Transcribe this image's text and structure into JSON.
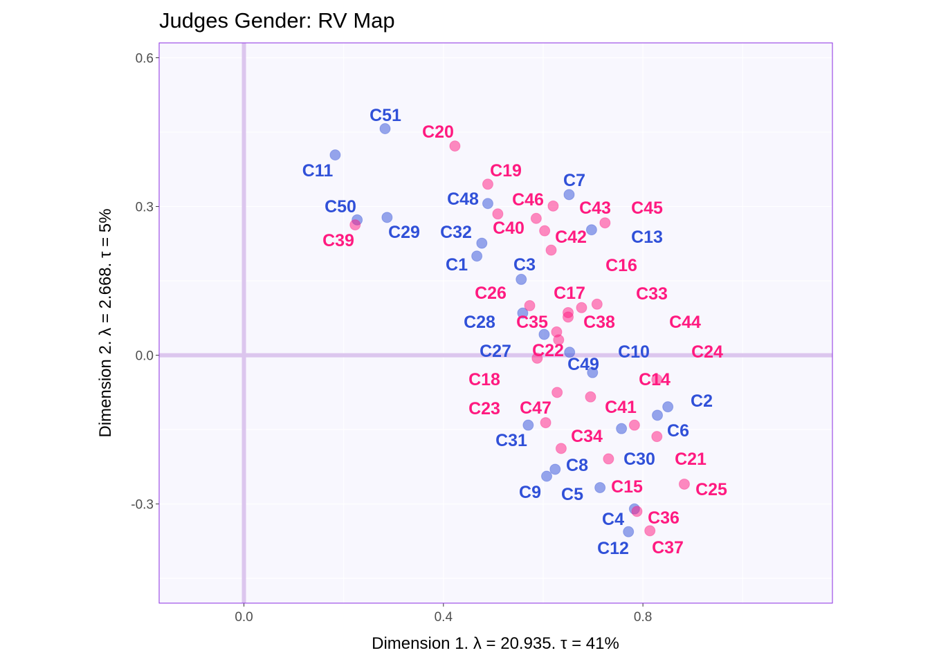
{
  "chart_data": {
    "type": "scatter",
    "title": "Judges Gender: RV Map",
    "xlabel": "Dimension 1.   λ = 20.935.  τ = 41%",
    "ylabel": "Dimension 2.   λ = 2.668.  τ = 5%",
    "xlim": [
      -0.17,
      1.18
    ],
    "ylim": [
      -0.5,
      0.63
    ],
    "xticks": [
      0.0,
      0.4,
      0.8
    ],
    "xtick_labels": [
      "0.0",
      "0.4",
      "0.8"
    ],
    "yticks": [
      -0.3,
      0.0,
      0.3,
      0.6
    ],
    "ytick_labels": [
      "-0.3",
      "0.0",
      "0.3",
      "0.6"
    ],
    "grid": true,
    "colors": {
      "background": "#F8F7FE",
      "border": "#8A2BE2",
      "origin_lines": "#DCC6EE",
      "blue": "#3050D8",
      "pink": "#FF1A80"
    },
    "series": [
      {
        "color": "#3050D8",
        "points": [
          {
            "label": "C51",
            "x": 0.283,
            "y": 0.457
          },
          {
            "label": "C11",
            "x": 0.183,
            "y": 0.404
          },
          {
            "label": "C50",
            "x": 0.227,
            "y": 0.273
          },
          {
            "label": "C29",
            "x": 0.287,
            "y": 0.278
          },
          {
            "label": "C32",
            "x": 0.477,
            "y": 0.226
          },
          {
            "label": "C1",
            "x": 0.467,
            "y": 0.2
          },
          {
            "label": "C48",
            "x": 0.489,
            "y": 0.306
          },
          {
            "label": "C7",
            "x": 0.652,
            "y": 0.324
          },
          {
            "label": "C13",
            "x": 0.697,
            "y": 0.253
          },
          {
            "label": "C3",
            "x": 0.556,
            "y": 0.153
          },
          {
            "label": "C28",
            "x": 0.559,
            "y": 0.085
          },
          {
            "label": "C27",
            "x": 0.602,
            "y": 0.042
          },
          {
            "label": "C49",
            "x": 0.653,
            "y": 0.006
          },
          {
            "label": "C10",
            "x": 0.699,
            "y": -0.035
          },
          {
            "label": "C2",
            "x": 0.85,
            "y": -0.104
          },
          {
            "label": "C6",
            "x": 0.829,
            "y": -0.121
          },
          {
            "label": "C30",
            "x": 0.757,
            "y": -0.148
          },
          {
            "label": "C31",
            "x": 0.57,
            "y": -0.141
          },
          {
            "label": "C8",
            "x": 0.624,
            "y": -0.23
          },
          {
            "label": "C9",
            "x": 0.607,
            "y": -0.244
          },
          {
            "label": "C5",
            "x": 0.714,
            "y": -0.267
          },
          {
            "label": "C4",
            "x": 0.783,
            "y": -0.31
          },
          {
            "label": "C12",
            "x": 0.771,
            "y": -0.356
          }
        ]
      },
      {
        "color": "#FF1A80",
        "points": [
          {
            "label": "C20",
            "x": 0.423,
            "y": 0.422
          },
          {
            "label": "C39",
            "x": 0.223,
            "y": 0.263
          },
          {
            "label": "C19",
            "x": 0.489,
            "y": 0.345
          },
          {
            "label": "C40",
            "x": 0.509,
            "y": 0.285
          },
          {
            "label": "C46",
            "x": 0.586,
            "y": 0.276
          },
          {
            "label": "C43",
            "x": 0.62,
            "y": 0.301
          },
          {
            "label": "C45",
            "x": 0.724,
            "y": 0.267
          },
          {
            "label": "C42",
            "x": 0.603,
            "y": 0.251
          },
          {
            "label": "C16",
            "x": 0.616,
            "y": 0.212
          },
          {
            "label": "C26",
            "x": 0.573,
            "y": 0.1
          },
          {
            "label": "C17",
            "x": 0.65,
            "y": 0.086
          },
          {
            "label": "C38",
            "x": 0.65,
            "y": 0.077
          },
          {
            "label": "C33",
            "x": 0.677,
            "y": 0.096
          },
          {
            "label": "C44",
            "x": 0.708,
            "y": 0.103
          },
          {
            "label": "C35",
            "x": 0.627,
            "y": 0.047
          },
          {
            "label": "C22",
            "x": 0.631,
            "y": 0.031
          },
          {
            "label": "C14",
            "x": 0.588,
            "y": -0.006
          },
          {
            "label": "C24",
            "x": 0.828,
            "y": -0.049
          },
          {
            "label": "C18",
            "x": 0.628,
            "y": -0.075
          },
          {
            "label": "C23",
            "x": 0.605,
            "y": -0.136
          },
          {
            "label": "C47",
            "x": 0.695,
            "y": -0.084
          },
          {
            "label": "C41",
            "x": 0.783,
            "y": -0.141
          },
          {
            "label": "C34",
            "x": 0.636,
            "y": -0.188
          },
          {
            "label": "C21",
            "x": 0.828,
            "y": -0.164
          },
          {
            "label": "C15",
            "x": 0.731,
            "y": -0.209
          },
          {
            "label": "C25",
            "x": 0.883,
            "y": -0.26
          },
          {
            "label": "C36",
            "x": 0.788,
            "y": -0.315
          },
          {
            "label": "C37",
            "x": 0.814,
            "y": -0.354
          }
        ]
      }
    ]
  }
}
